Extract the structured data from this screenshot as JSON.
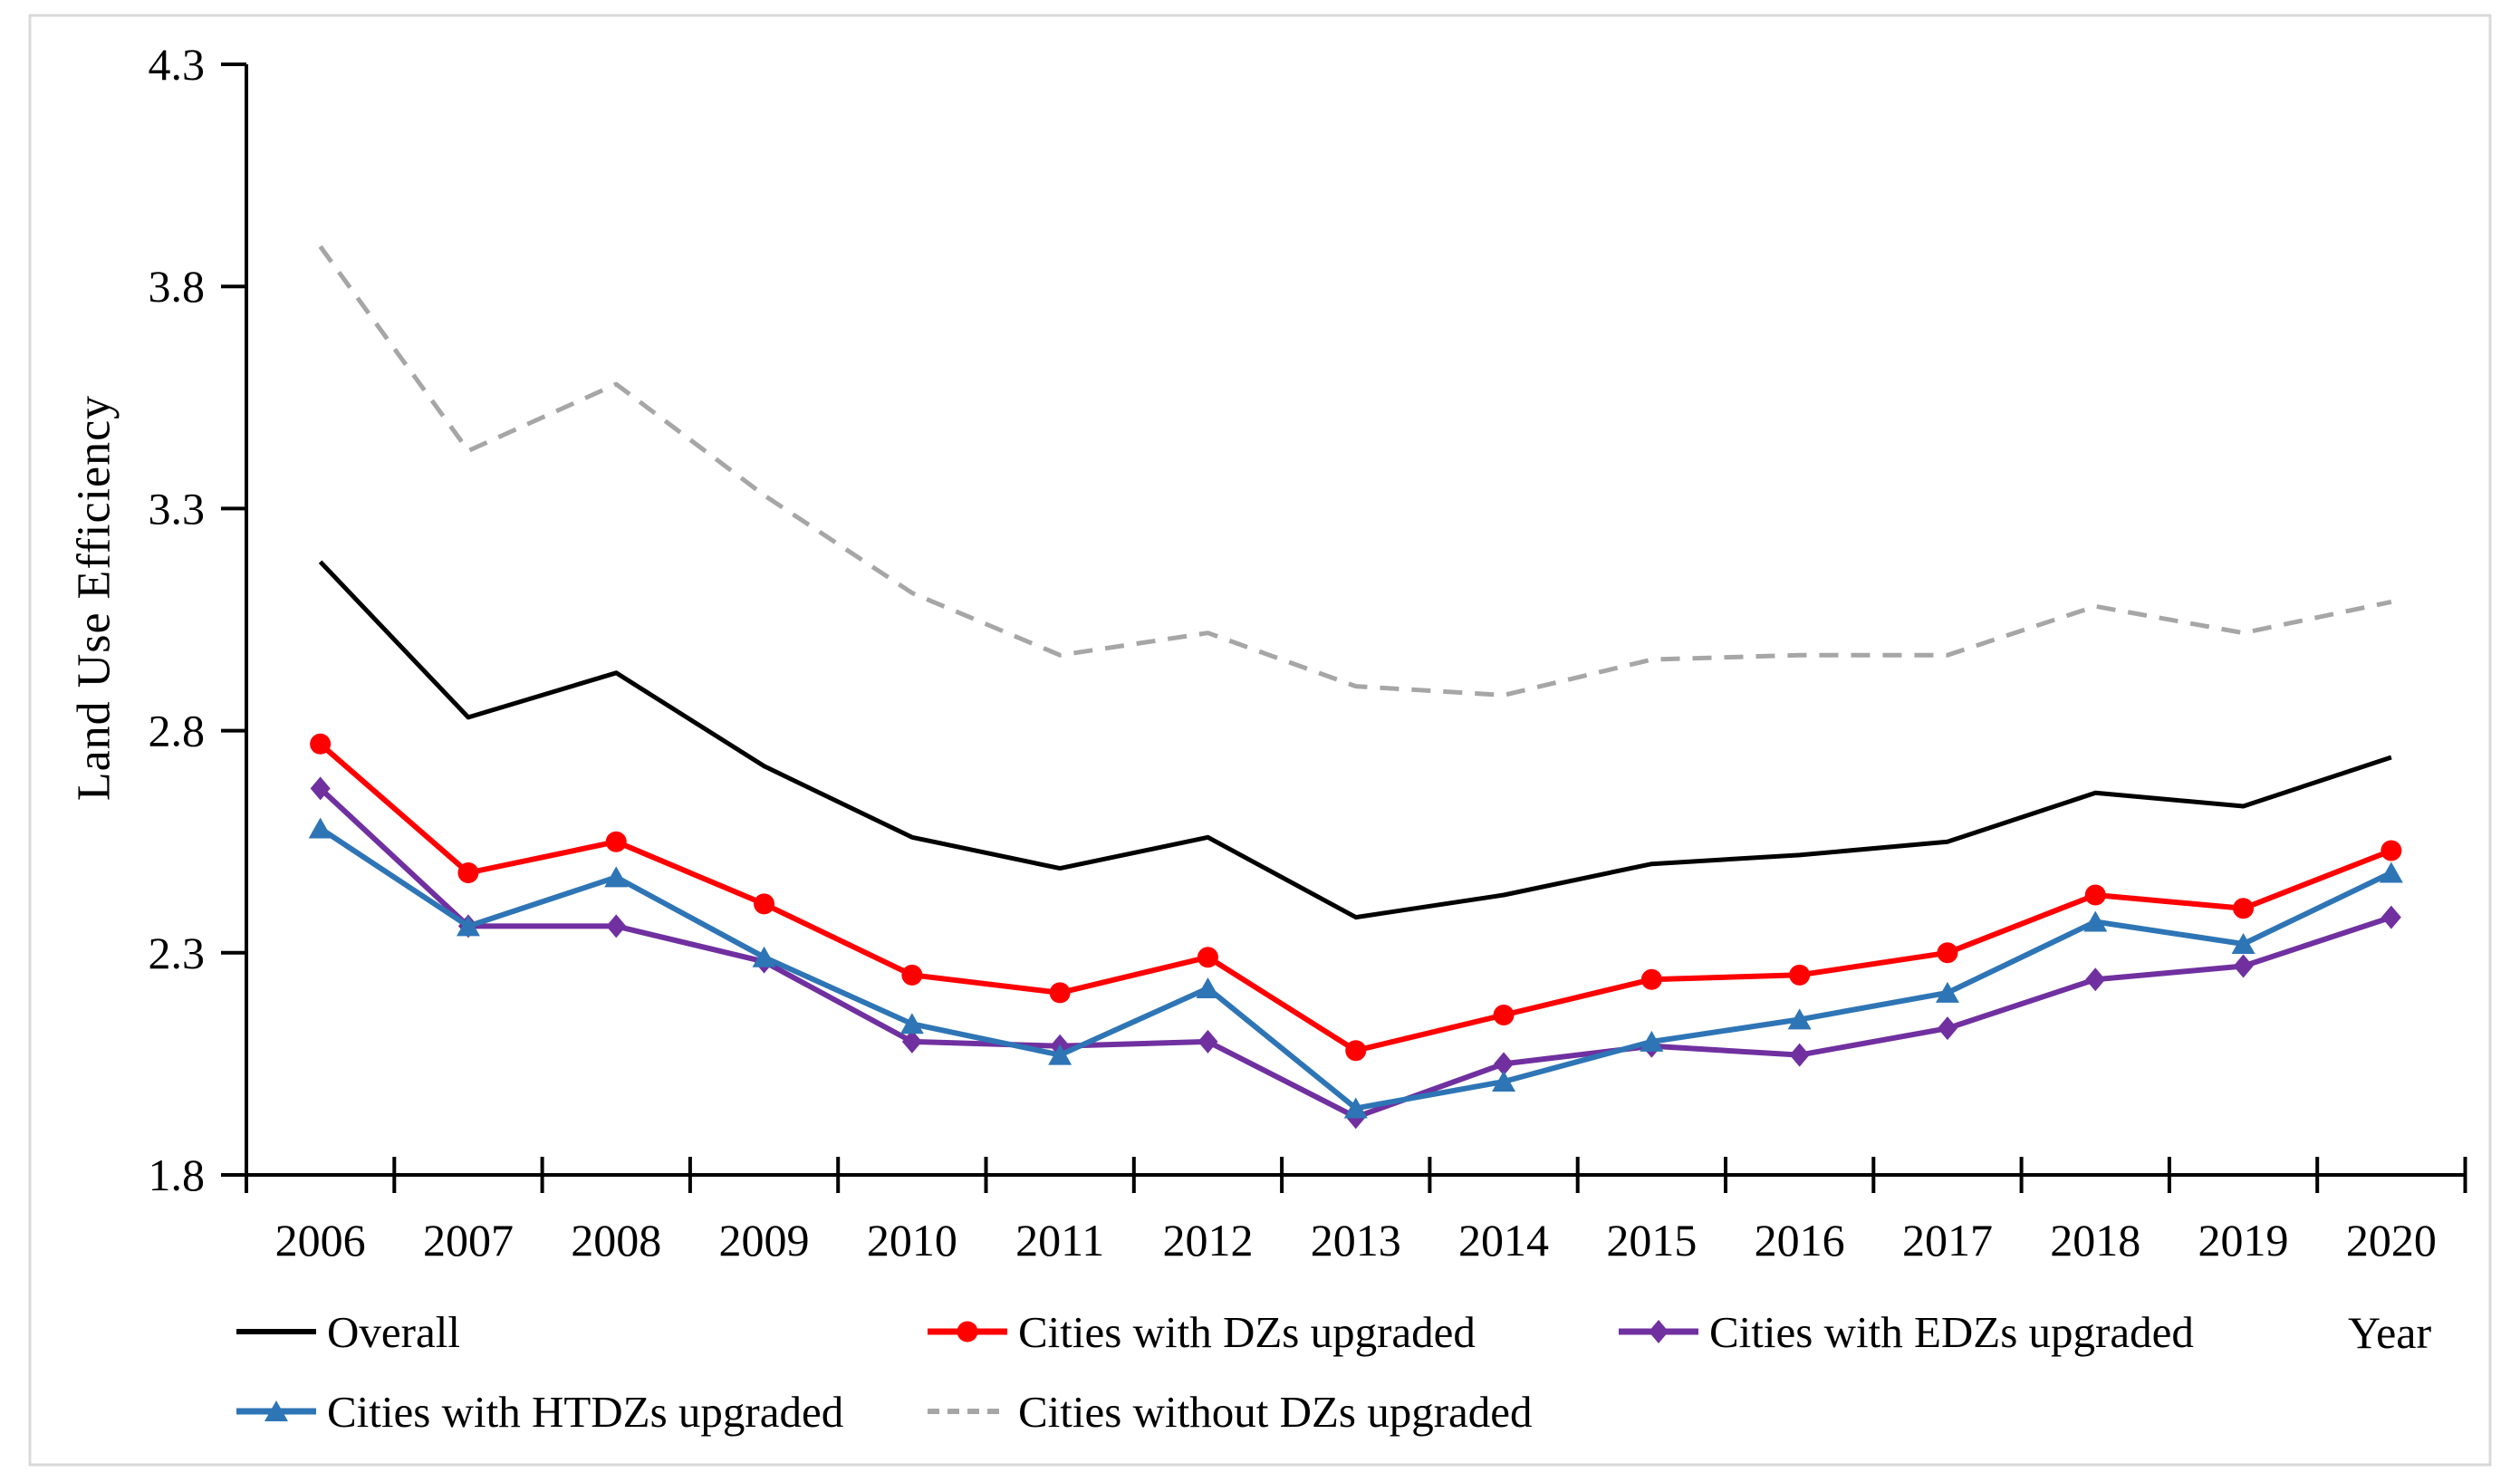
{
  "figure": {
    "background": "#ffffff",
    "frame_color": "#d9d9d9"
  },
  "chart_data": {
    "type": "line",
    "title": "",
    "xlabel": "Year",
    "ylabel": "Land Use Efficiency",
    "categories": [
      "2006",
      "2007",
      "2008",
      "2009",
      "2010",
      "2011",
      "2012",
      "2013",
      "2014",
      "2015",
      "2016",
      "2017",
      "2018",
      "2019",
      "2020"
    ],
    "ylim": [
      1.8,
      4.3
    ],
    "yticks": [
      4.3,
      3.8,
      3.3,
      2.8,
      2.3,
      1.8
    ],
    "grid": false,
    "legend_position": "bottom",
    "axis_color": "#000000",
    "series": [
      {
        "name": "Overall",
        "color": "#000000",
        "line_style": "solid",
        "marker": "none",
        "values": [
          3.18,
          2.83,
          2.93,
          2.72,
          2.56,
          2.49,
          2.56,
          2.38,
          2.43,
          2.5,
          2.52,
          2.55,
          2.66,
          2.63,
          2.74
        ]
      },
      {
        "name": "Cities with DZs upgraded",
        "color": "#FF0000",
        "line_style": "solid",
        "marker": "circle",
        "values": [
          2.77,
          2.48,
          2.55,
          2.41,
          2.25,
          2.21,
          2.29,
          2.08,
          2.16,
          2.24,
          2.25,
          2.3,
          2.43,
          2.4,
          2.53
        ]
      },
      {
        "name": "Cities with EDZs upgraded",
        "color": "#7030A0",
        "line_style": "solid",
        "marker": "diamond",
        "values": [
          2.67,
          2.36,
          2.36,
          2.28,
          2.1,
          2.09,
          2.1,
          1.93,
          2.05,
          2.09,
          2.07,
          2.13,
          2.24,
          2.27,
          2.38
        ]
      },
      {
        "name": "Cities with HTDZs upgraded",
        "color": "#2E75B6",
        "line_style": "solid",
        "marker": "triangle",
        "values": [
          2.58,
          2.36,
          2.47,
          2.29,
          2.14,
          2.07,
          2.22,
          1.95,
          2.01,
          2.1,
          2.15,
          2.21,
          2.37,
          2.32,
          2.48
        ]
      },
      {
        "name": "Cities without DZs upgraded",
        "color": "#A6A6A6",
        "line_style": "dashed",
        "marker": "none",
        "values": [
          3.89,
          3.43,
          3.58,
          3.33,
          3.11,
          2.97,
          3.02,
          2.9,
          2.88,
          2.96,
          2.97,
          2.97,
          3.08,
          3.02,
          3.09
        ]
      }
    ]
  }
}
